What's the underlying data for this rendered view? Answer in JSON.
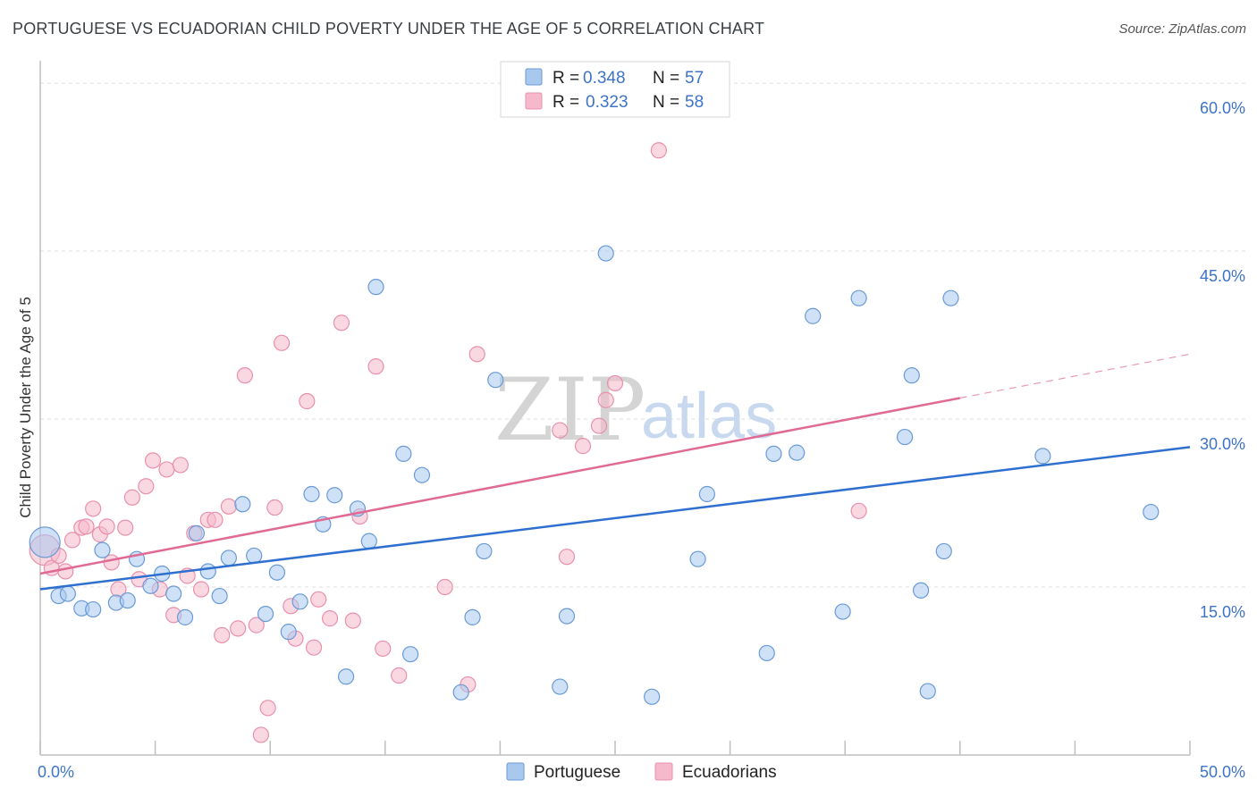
{
  "title": "PORTUGUESE VS ECUADORIAN CHILD POVERTY UNDER THE AGE OF 5 CORRELATION CHART",
  "source": "Source: ZipAtlas.com",
  "watermark": {
    "zip": "ZIP",
    "atlas": "atlas"
  },
  "colors": {
    "blue_fill": "#a8c8ee",
    "blue_stroke": "#6a9ad6",
    "blue_line": "#2f6fd0",
    "pink_fill": "#f6b8cb",
    "pink_stroke": "#e890ac",
    "pink_line": "#e06a94",
    "grid": "#dddddd",
    "tick_text": "#3d73c8"
  },
  "legend": {
    "rows": [
      {
        "r_label": "R = ",
        "r_value": "0.348",
        "n_label": "N = ",
        "n_value": "57"
      },
      {
        "r_label": "R = ",
        "r_value": "0.323",
        "n_label": "N = ",
        "n_value": "58"
      }
    ]
  },
  "chart_data": {
    "type": "scatter",
    "title": "PORTUGUESE VS ECUADORIAN CHILD POVERTY UNDER THE AGE OF 5 CORRELATION CHART",
    "xlabel": "",
    "ylabel": "Child Poverty Under the Age of 5",
    "xlim": [
      0,
      50
    ],
    "ylim": [
      0,
      62
    ],
    "x_tick_labels": [
      {
        "value": 0,
        "label": "0.0%"
      },
      {
        "value": 50,
        "label": "50.0%"
      }
    ],
    "y_tick_labels": [
      {
        "value": 15,
        "label": "15.0%"
      },
      {
        "value": 30,
        "label": "30.0%"
      },
      {
        "value": 45,
        "label": "45.0%"
      },
      {
        "value": 60,
        "label": "60.0%"
      }
    ],
    "series": [
      {
        "name": "Portuguese",
        "color": "#a8c8ee",
        "r": 0.348,
        "n": 57,
        "trend": {
          "x0": 0,
          "y0": 14.8,
          "x1": 50,
          "y1": 27.5,
          "dashed_from": null
        },
        "points": [
          [
            0.2,
            19.0,
            "big"
          ],
          [
            0.8,
            14.2
          ],
          [
            1.2,
            14.4
          ],
          [
            1.8,
            13.1
          ],
          [
            2.3,
            13.0
          ],
          [
            2.7,
            18.3
          ],
          [
            3.3,
            13.6
          ],
          [
            3.8,
            13.8
          ],
          [
            4.2,
            17.5
          ],
          [
            4.8,
            15.1
          ],
          [
            5.3,
            16.2
          ],
          [
            5.8,
            14.4
          ],
          [
            6.3,
            12.3
          ],
          [
            6.8,
            19.8
          ],
          [
            7.3,
            16.4
          ],
          [
            7.8,
            14.2
          ],
          [
            8.2,
            17.6
          ],
          [
            8.8,
            22.4
          ],
          [
            9.3,
            17.8
          ],
          [
            9.8,
            12.6
          ],
          [
            10.3,
            16.3
          ],
          [
            10.8,
            11.0
          ],
          [
            11.3,
            13.7
          ],
          [
            11.8,
            23.3
          ],
          [
            12.3,
            20.6
          ],
          [
            12.8,
            23.2
          ],
          [
            13.3,
            7.0
          ],
          [
            13.8,
            22.0
          ],
          [
            14.3,
            19.1
          ],
          [
            14.6,
            41.8
          ],
          [
            15.8,
            26.9
          ],
          [
            16.1,
            9.0
          ],
          [
            16.6,
            25.0
          ],
          [
            18.3,
            5.6
          ],
          [
            18.8,
            12.3
          ],
          [
            19.3,
            18.2
          ],
          [
            19.8,
            33.5
          ],
          [
            22.6,
            6.1
          ],
          [
            22.9,
            12.4
          ],
          [
            24.6,
            44.8
          ],
          [
            26.6,
            5.2
          ],
          [
            28.6,
            17.5
          ],
          [
            29.0,
            23.3
          ],
          [
            31.6,
            9.1
          ],
          [
            31.9,
            26.9
          ],
          [
            32.9,
            27.0
          ],
          [
            33.6,
            39.2
          ],
          [
            34.9,
            12.8
          ],
          [
            35.6,
            40.8
          ],
          [
            37.6,
            28.4
          ],
          [
            37.9,
            33.9
          ],
          [
            38.3,
            14.7
          ],
          [
            38.6,
            5.7
          ],
          [
            39.3,
            18.2
          ],
          [
            39.6,
            40.8
          ],
          [
            43.6,
            26.7
          ],
          [
            48.3,
            21.7
          ]
        ]
      },
      {
        "name": "Ecuadorians",
        "color": "#f6b8cb",
        "r": 0.323,
        "n": 58,
        "trend": {
          "x0": 0,
          "y0": 16.2,
          "x1": 50,
          "y1": 35.8,
          "dashed_from": 40
        },
        "points": [
          [
            0.2,
            18.3,
            "big"
          ],
          [
            0.5,
            16.7
          ],
          [
            0.8,
            17.8
          ],
          [
            1.1,
            16.4
          ],
          [
            1.4,
            19.2
          ],
          [
            1.8,
            20.3
          ],
          [
            2.0,
            20.4
          ],
          [
            2.3,
            22.0
          ],
          [
            2.6,
            19.7
          ],
          [
            2.9,
            20.4
          ],
          [
            3.1,
            17.2
          ],
          [
            3.4,
            14.8
          ],
          [
            3.7,
            20.3
          ],
          [
            4.0,
            23.0
          ],
          [
            4.3,
            15.7
          ],
          [
            4.6,
            24.0
          ],
          [
            4.9,
            26.3
          ],
          [
            5.2,
            14.8
          ],
          [
            5.5,
            25.5
          ],
          [
            5.8,
            12.5
          ],
          [
            6.1,
            25.9
          ],
          [
            6.4,
            16.0
          ],
          [
            6.7,
            19.8
          ],
          [
            7.0,
            14.8
          ],
          [
            7.3,
            21.0
          ],
          [
            7.6,
            21.0
          ],
          [
            7.9,
            10.7
          ],
          [
            8.2,
            22.2
          ],
          [
            8.6,
            11.3
          ],
          [
            8.9,
            33.9
          ],
          [
            9.4,
            11.6
          ],
          [
            9.9,
            4.2
          ],
          [
            10.2,
            22.1
          ],
          [
            10.5,
            36.8
          ],
          [
            10.9,
            13.3
          ],
          [
            11.1,
            10.4
          ],
          [
            11.6,
            31.6
          ],
          [
            11.9,
            9.6
          ],
          [
            12.1,
            13.9
          ],
          [
            12.6,
            12.2
          ],
          [
            13.1,
            38.6
          ],
          [
            13.6,
            12.0
          ],
          [
            13.9,
            21.3
          ],
          [
            14.6,
            34.7
          ],
          [
            14.9,
            9.5
          ],
          [
            15.6,
            7.1
          ],
          [
            17.6,
            15.0
          ],
          [
            18.6,
            6.3
          ],
          [
            19.0,
            35.8
          ],
          [
            22.6,
            29.0
          ],
          [
            22.9,
            17.7
          ],
          [
            23.6,
            27.6
          ],
          [
            24.3,
            29.4
          ],
          [
            24.6,
            31.7
          ],
          [
            25.0,
            33.2
          ],
          [
            26.9,
            54.0
          ],
          [
            35.6,
            21.8
          ],
          [
            9.6,
            1.8
          ]
        ]
      }
    ]
  },
  "bottom_legend": {
    "items": [
      "Portuguese",
      "Ecuadorians"
    ]
  }
}
